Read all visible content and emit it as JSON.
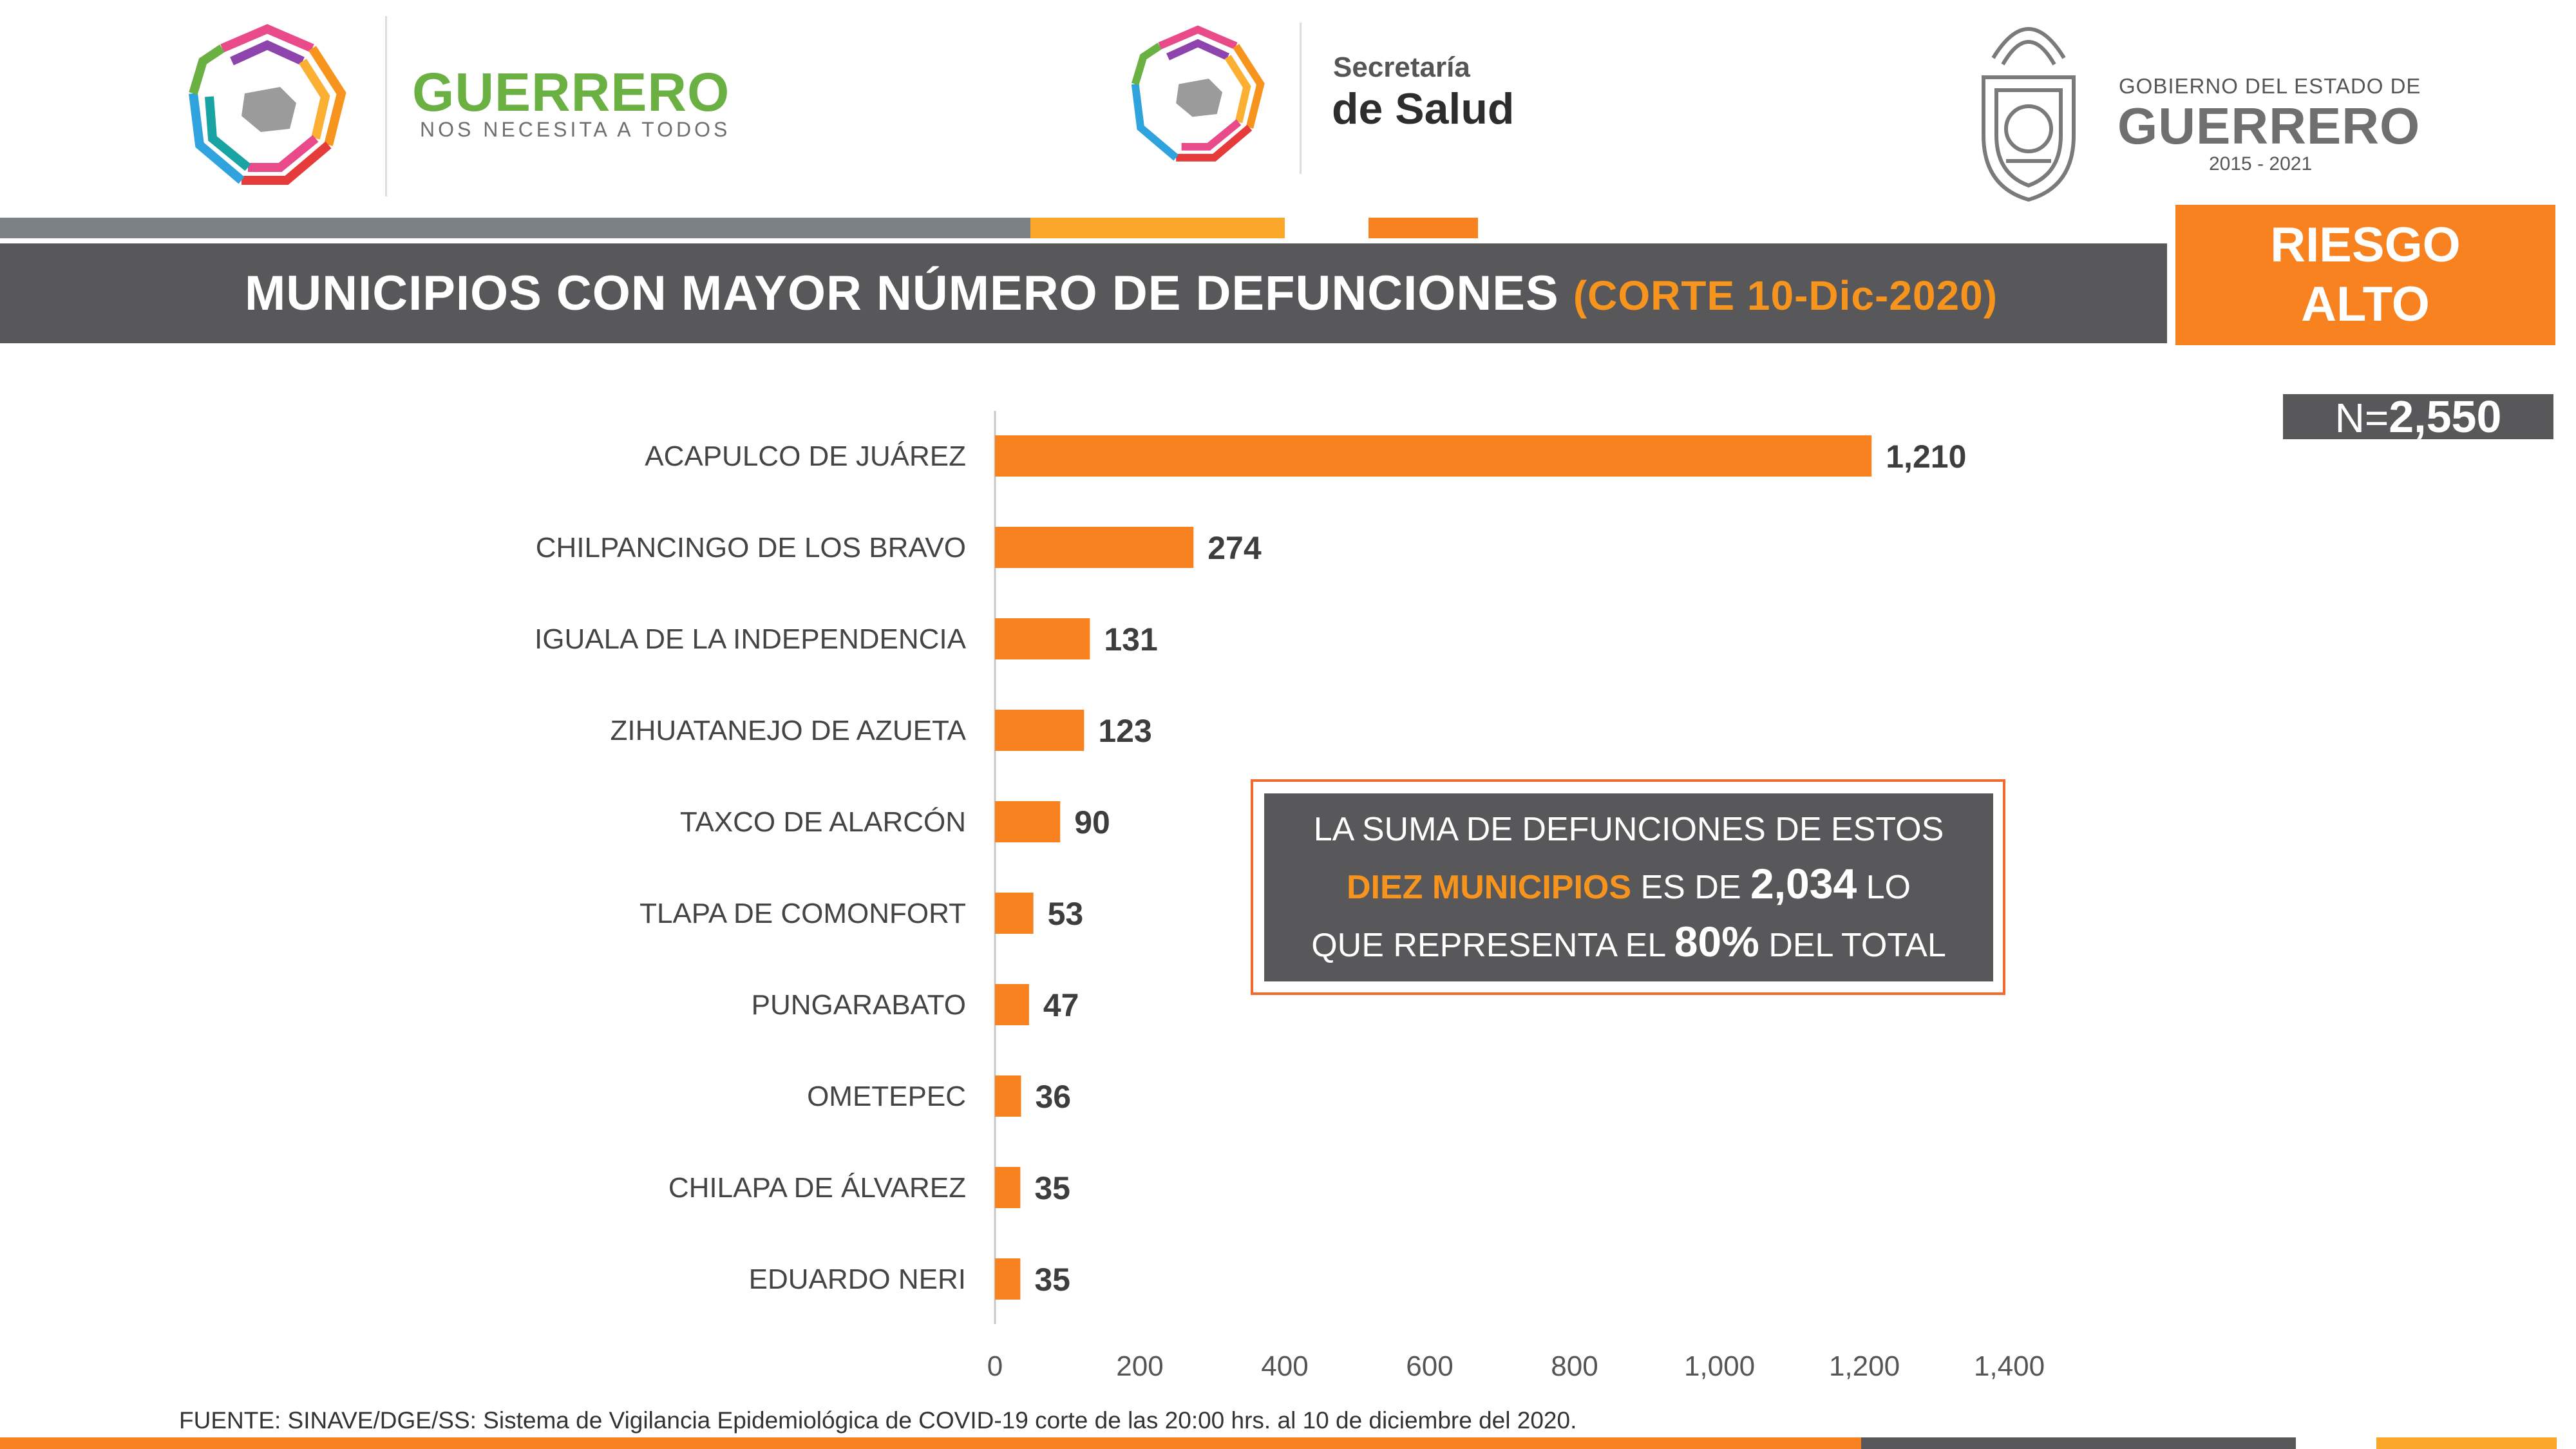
{
  "header": {
    "left_logo": {
      "title": "GUERRERO",
      "subtitle": "NOS NECESITA A TODOS"
    },
    "center_logo": {
      "line1": "Secretaría",
      "line2": "de Salud"
    },
    "right_logo": {
      "line1": "GOBIERNO DEL ESTADO DE",
      "line2": "GUERRERO",
      "line3": "2015 - 2021"
    }
  },
  "banner": {
    "title": "MUNICIPIOS CON MAYOR NÚMERO  DE  DEFUNCIONES",
    "cut": "(CORTE  10-Dic-2020)"
  },
  "risk": {
    "line1": "RIESGO",
    "line2": "ALTO"
  },
  "total": {
    "prefix": "N=",
    "value": "2,550"
  },
  "summary": {
    "line1": "LA SUMA DE DEFUNCIONES DE ESTOS",
    "highlight": "DIEZ MUNICIPIOS",
    "mid": " ES DE ",
    "sum": "2,034",
    "end1": " LO",
    "line3a": "QUE REPRESENTA EL ",
    "pct": "80%",
    "line3b": " DEL TOTAL"
  },
  "source": "FUENTE: SINAVE/DGE/SS: Sistema de Vigilancia Epidemiológica de COVID-19 corte de las 20:00 hrs. al 10  de diciembre del 2020.",
  "colors": {
    "bar": "#f7821f",
    "banner": "#58585a",
    "accent": "#f7941d"
  },
  "chart_data": {
    "type": "bar",
    "orientation": "horizontal",
    "categories": [
      "ACAPULCO DE JUÁREZ",
      "CHILPANCINGO DE LOS BRAVO",
      "IGUALA DE LA INDEPENDENCIA",
      "ZIHUATANEJO DE AZUETA",
      "TAXCO DE ALARCÓN",
      "TLAPA DE COMONFORT",
      "PUNGARABATO",
      "OMETEPEC",
      "CHILAPA DE ÁLVAREZ",
      "EDUARDO NERI"
    ],
    "values": [
      1210,
      274,
      131,
      123,
      90,
      53,
      47,
      36,
      35,
      35
    ],
    "value_labels": [
      "1,210",
      "274",
      "131",
      "123",
      "90",
      "53",
      "47",
      "36",
      "35",
      "35"
    ],
    "xlim": [
      0,
      1400
    ],
    "ticks": [
      0,
      200,
      400,
      600,
      800,
      1000,
      1200,
      1400
    ],
    "tick_labels": [
      "0",
      "200",
      "400",
      "600",
      "800",
      "1,000",
      "1,200",
      "1,400"
    ],
    "grid": false
  }
}
